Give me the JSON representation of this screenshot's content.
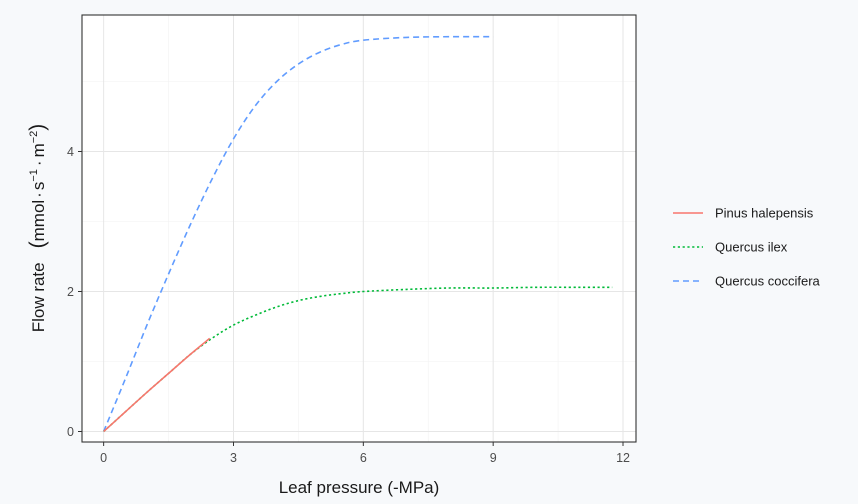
{
  "chart_data": {
    "type": "line",
    "title": "",
    "xlabel": "Leaf pressure (-MPa)",
    "ylabel": "Flow rate",
    "ylabel_units": {
      "open": "(",
      "mmol": "mmol",
      "s": "s",
      "s_exp": "−1",
      "m": "m",
      "m_exp": "−2",
      "close": ")"
    },
    "xlim": [
      -0.5,
      12.3
    ],
    "ylim": [
      -0.15,
      5.95
    ],
    "x_ticks": [
      0,
      3,
      6,
      9,
      12
    ],
    "x_tick_labels": [
      "0",
      "3",
      "6",
      "9",
      "12"
    ],
    "y_ticks": [
      0,
      2,
      4
    ],
    "y_tick_labels": [
      "0",
      "2",
      "4"
    ],
    "grid": true,
    "legend_position": "right",
    "series": [
      {
        "name": "Pinus halepensis",
        "color": "#f8766d",
        "dash": "solid",
        "points": [
          [
            0,
            0
          ],
          [
            0.5,
            0.28
          ],
          [
            1.0,
            0.56
          ],
          [
            1.5,
            0.83
          ],
          [
            2.0,
            1.1
          ],
          [
            2.45,
            1.33
          ]
        ]
      },
      {
        "name": "Quercus ilex",
        "color": "#00ba38",
        "dash": "dotted",
        "points": [
          [
            0,
            0
          ],
          [
            0.5,
            0.28
          ],
          [
            1.0,
            0.56
          ],
          [
            1.5,
            0.83
          ],
          [
            2.0,
            1.1
          ],
          [
            2.5,
            1.33
          ],
          [
            3.0,
            1.52
          ],
          [
            3.5,
            1.66
          ],
          [
            4.0,
            1.78
          ],
          [
            4.5,
            1.87
          ],
          [
            5.0,
            1.93
          ],
          [
            5.5,
            1.97
          ],
          [
            6.0,
            2.0
          ],
          [
            7.0,
            2.03
          ],
          [
            8.0,
            2.05
          ],
          [
            9.0,
            2.05
          ],
          [
            10.0,
            2.06
          ],
          [
            11.0,
            2.06
          ],
          [
            11.75,
            2.06
          ]
        ]
      },
      {
        "name": "Quercus coccifera",
        "color": "#619cff",
        "dash": "dashed",
        "points": [
          [
            0,
            0
          ],
          [
            0.5,
            0.75
          ],
          [
            1.0,
            1.52
          ],
          [
            1.5,
            2.25
          ],
          [
            2.0,
            2.95
          ],
          [
            2.5,
            3.6
          ],
          [
            3.0,
            4.18
          ],
          [
            3.5,
            4.65
          ],
          [
            4.0,
            5.0
          ],
          [
            4.5,
            5.25
          ],
          [
            5.0,
            5.42
          ],
          [
            5.5,
            5.53
          ],
          [
            6.0,
            5.59
          ],
          [
            7.0,
            5.63
          ],
          [
            8.0,
            5.64
          ],
          [
            9.0,
            5.64
          ]
        ]
      }
    ]
  }
}
